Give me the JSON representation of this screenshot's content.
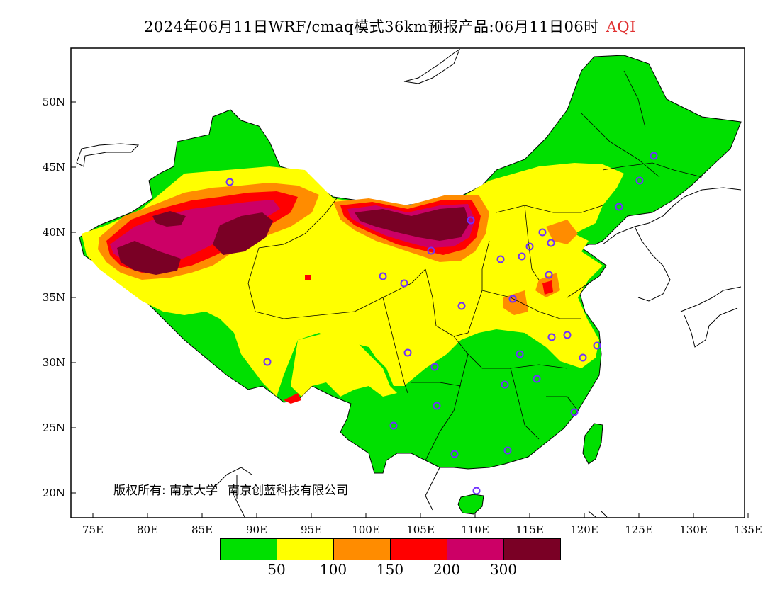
{
  "title": {
    "main": "2024年06月11日WRF/cmaq模式36km预报产品:06月11日06时",
    "variable": "AQI"
  },
  "axes": {
    "lon_ticks": [
      "75E",
      "80E",
      "85E",
      "90E",
      "95E",
      "100E",
      "105E",
      "110E",
      "115E",
      "120E",
      "125E",
      "130E",
      "135E"
    ],
    "lat_ticks": [
      "50N",
      "45N",
      "40N",
      "35N",
      "30N",
      "25N",
      "20N"
    ]
  },
  "legend": {
    "colors": [
      "#00e000",
      "#ffff00",
      "#ff8c00",
      "#ff0000",
      "#cc0066",
      "#7a0025"
    ],
    "labels": [
      "50",
      "100",
      "150",
      "200",
      "300"
    ]
  },
  "copyright": {
    "prefix": "版权所有:",
    "org1": "南京大学",
    "org2": "南京创蓝科技有限公司"
  },
  "station_marker_color": "#7030ff",
  "boundary_color": "#000000"
}
